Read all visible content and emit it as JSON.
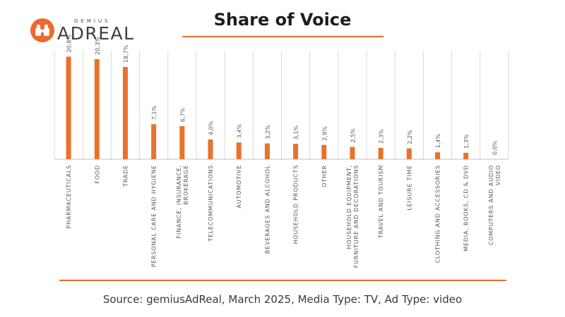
{
  "logo": {
    "brand_small": "GEMIUS",
    "brand_big": "ADREAL"
  },
  "title": "Share of Voice",
  "source": "Source: gemiusAdReal, March 2025, Media Type: TV, Ad Type: video",
  "colors": {
    "accent": "#ec6a2c",
    "bar": "#e8722c",
    "grid": "#d9d9d9"
  },
  "chart_data": {
    "type": "bar",
    "categories": [
      [
        "PHARMACEUTICALS"
      ],
      [
        "FOOD"
      ],
      [
        "TRADE"
      ],
      [
        "PERSONAL CARE AND HYGIENE"
      ],
      [
        "FINANCE, INSURANCE,",
        "BROKERAGE"
      ],
      [
        "TELECOMMUNICATIONS"
      ],
      [
        "AUTOMOTIVE"
      ],
      [
        "BEVERAGES AND ALCOHOL"
      ],
      [
        "HOUSEHOLD PRODUCTS"
      ],
      [
        "OTHER"
      ],
      [
        "HOUSEHOLD EQUIPMENT,",
        "FURNITURE AND DECORATIONS"
      ],
      [
        "TRAVEL AND TOURISM"
      ],
      [
        "LEISURE TIME"
      ],
      [
        "CLOTHING AND ACCESSORIES"
      ],
      [
        "MEDIA, BOOKS, CD & DVD"
      ],
      [
        "COMPUTERS AND AUDIO",
        "VIDEO"
      ]
    ],
    "values": [
      20.8,
      20.3,
      18.7,
      7.1,
      6.7,
      4.0,
      3.4,
      3.2,
      3.1,
      2.9,
      2.5,
      2.3,
      2.2,
      1.4,
      1.3,
      0.0
    ],
    "data_labels": [
      "20,8%",
      "20,3%",
      "18,7%",
      "7,1%",
      "6,7%",
      "4,0%",
      "3,4%",
      "3,2%",
      "3,1%",
      "2,9%",
      "2,5%",
      "2,3%",
      "2,2%",
      "1,4%",
      "1,3%",
      "0,0%"
    ],
    "ylim": [
      0,
      22
    ],
    "grid": true
  }
}
